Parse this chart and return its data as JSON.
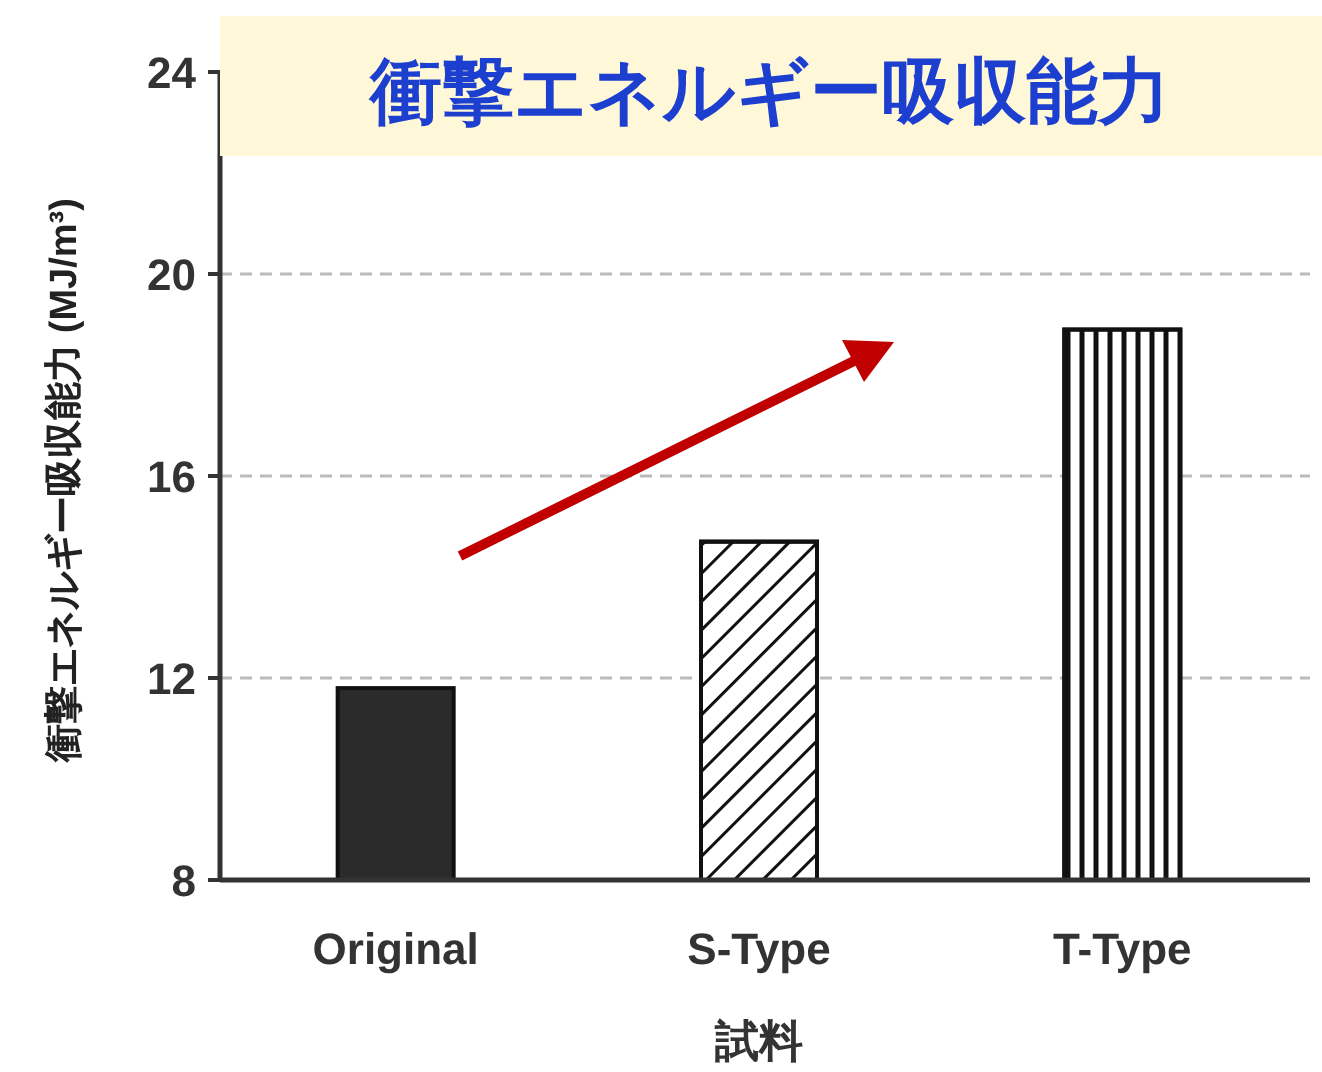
{
  "chart_data": {
    "type": "bar",
    "title": "衝撃エネルギー吸収能力",
    "ylabel": "衝撃エネルギー吸収能力 (MJ/m³)",
    "xlabel": "試料",
    "categories": [
      "Original",
      "S-Type",
      "T-Type"
    ],
    "values": [
      11.8,
      14.7,
      18.9
    ],
    "colors": [
      "#2b2b2b",
      "#ffffff",
      "#ffffff"
    ],
    "ylim": [
      8,
      24
    ],
    "yticks": [
      8,
      12,
      16,
      20,
      24
    ],
    "grid": "y"
  }
}
